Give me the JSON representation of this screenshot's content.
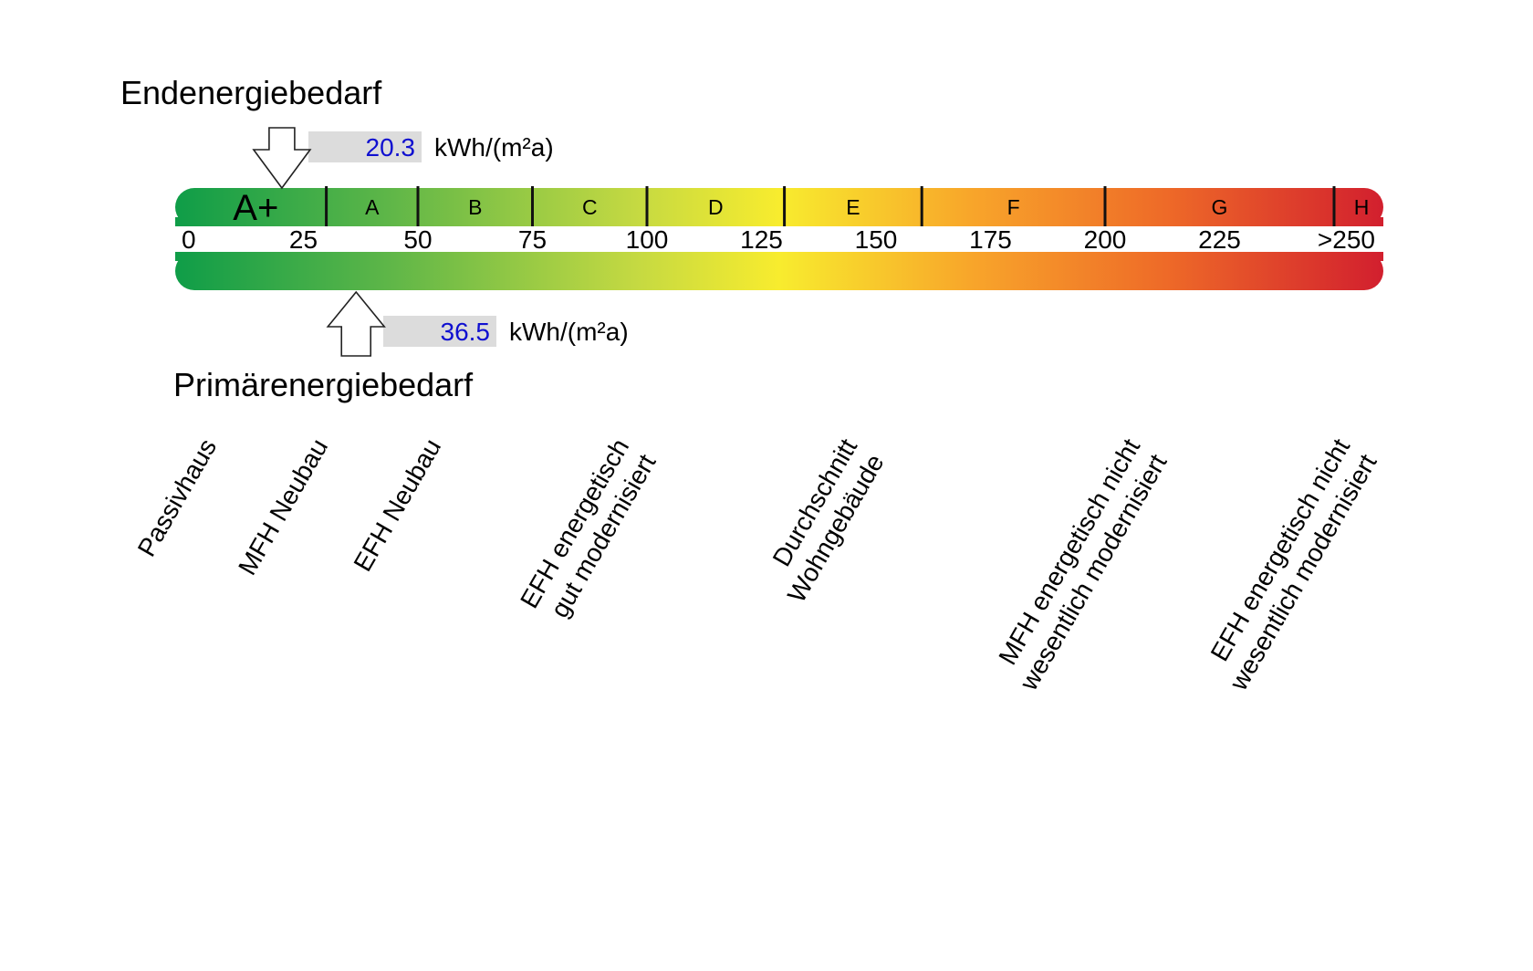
{
  "chart_data": {
    "type": "gauge",
    "endenergie": {
      "title": "Endenergiebedarf",
      "value": 20.3,
      "value_text": "20.3",
      "unit": "kWh/(m²a)"
    },
    "primaerenergie": {
      "title": "Primärenergiebedarf",
      "value": 36.5,
      "value_text": "36.5",
      "unit": "kWh/(m²a)"
    },
    "scale_ticks": [
      {
        "value": 0,
        "label": "0"
      },
      {
        "value": 25,
        "label": "25"
      },
      {
        "value": 50,
        "label": "50"
      },
      {
        "value": 75,
        "label": "75"
      },
      {
        "value": 100,
        "label": "100"
      },
      {
        "value": 125,
        "label": "125"
      },
      {
        "value": 150,
        "label": "150"
      },
      {
        "value": 175,
        "label": "175"
      },
      {
        "value": 200,
        "label": "200"
      },
      {
        "value": 225,
        "label": "225"
      },
      {
        "value": 250,
        "label": ">250"
      }
    ],
    "xlim": [
      0,
      262
    ],
    "classes": [
      {
        "label": "A+",
        "from": 0,
        "to": 30
      },
      {
        "label": "A",
        "from": 30,
        "to": 50
      },
      {
        "label": "B",
        "from": 50,
        "to": 75
      },
      {
        "label": "C",
        "from": 75,
        "to": 100
      },
      {
        "label": "D",
        "from": 100,
        "to": 130
      },
      {
        "label": "E",
        "from": 130,
        "to": 160
      },
      {
        "label": "F",
        "from": 160,
        "to": 200
      },
      {
        "label": "G",
        "from": 200,
        "to": 250
      },
      {
        "label": "H",
        "from": 250,
        "to": 262
      }
    ],
    "reference_buildings": [
      {
        "lines": [
          "Passivhaus"
        ],
        "value": 10
      },
      {
        "lines": [
          "MFH Neubau"
        ],
        "value": 30
      },
      {
        "lines": [
          "EFH Neubau"
        ],
        "value": 55
      },
      {
        "lines": [
          "EFH energetisch",
          "gut modernisiert"
        ],
        "value": 95
      },
      {
        "lines": [
          "Durchschnitt",
          "Wohngebäude"
        ],
        "value": 140
      },
      {
        "lines": [
          "MFH energetisch nicht",
          "wesentlich modernisiert"
        ],
        "value": 230
      },
      {
        "lines": [
          "EFH energetisch nicht",
          "wesentlich modernisiert"
        ],
        "value": 275
      }
    ],
    "gradient_colors": [
      "#0f9d48",
      "#5bb548",
      "#c4d942",
      "#f8ec2e",
      "#f8a52a",
      "#ee6a28",
      "#d21f2e"
    ]
  }
}
